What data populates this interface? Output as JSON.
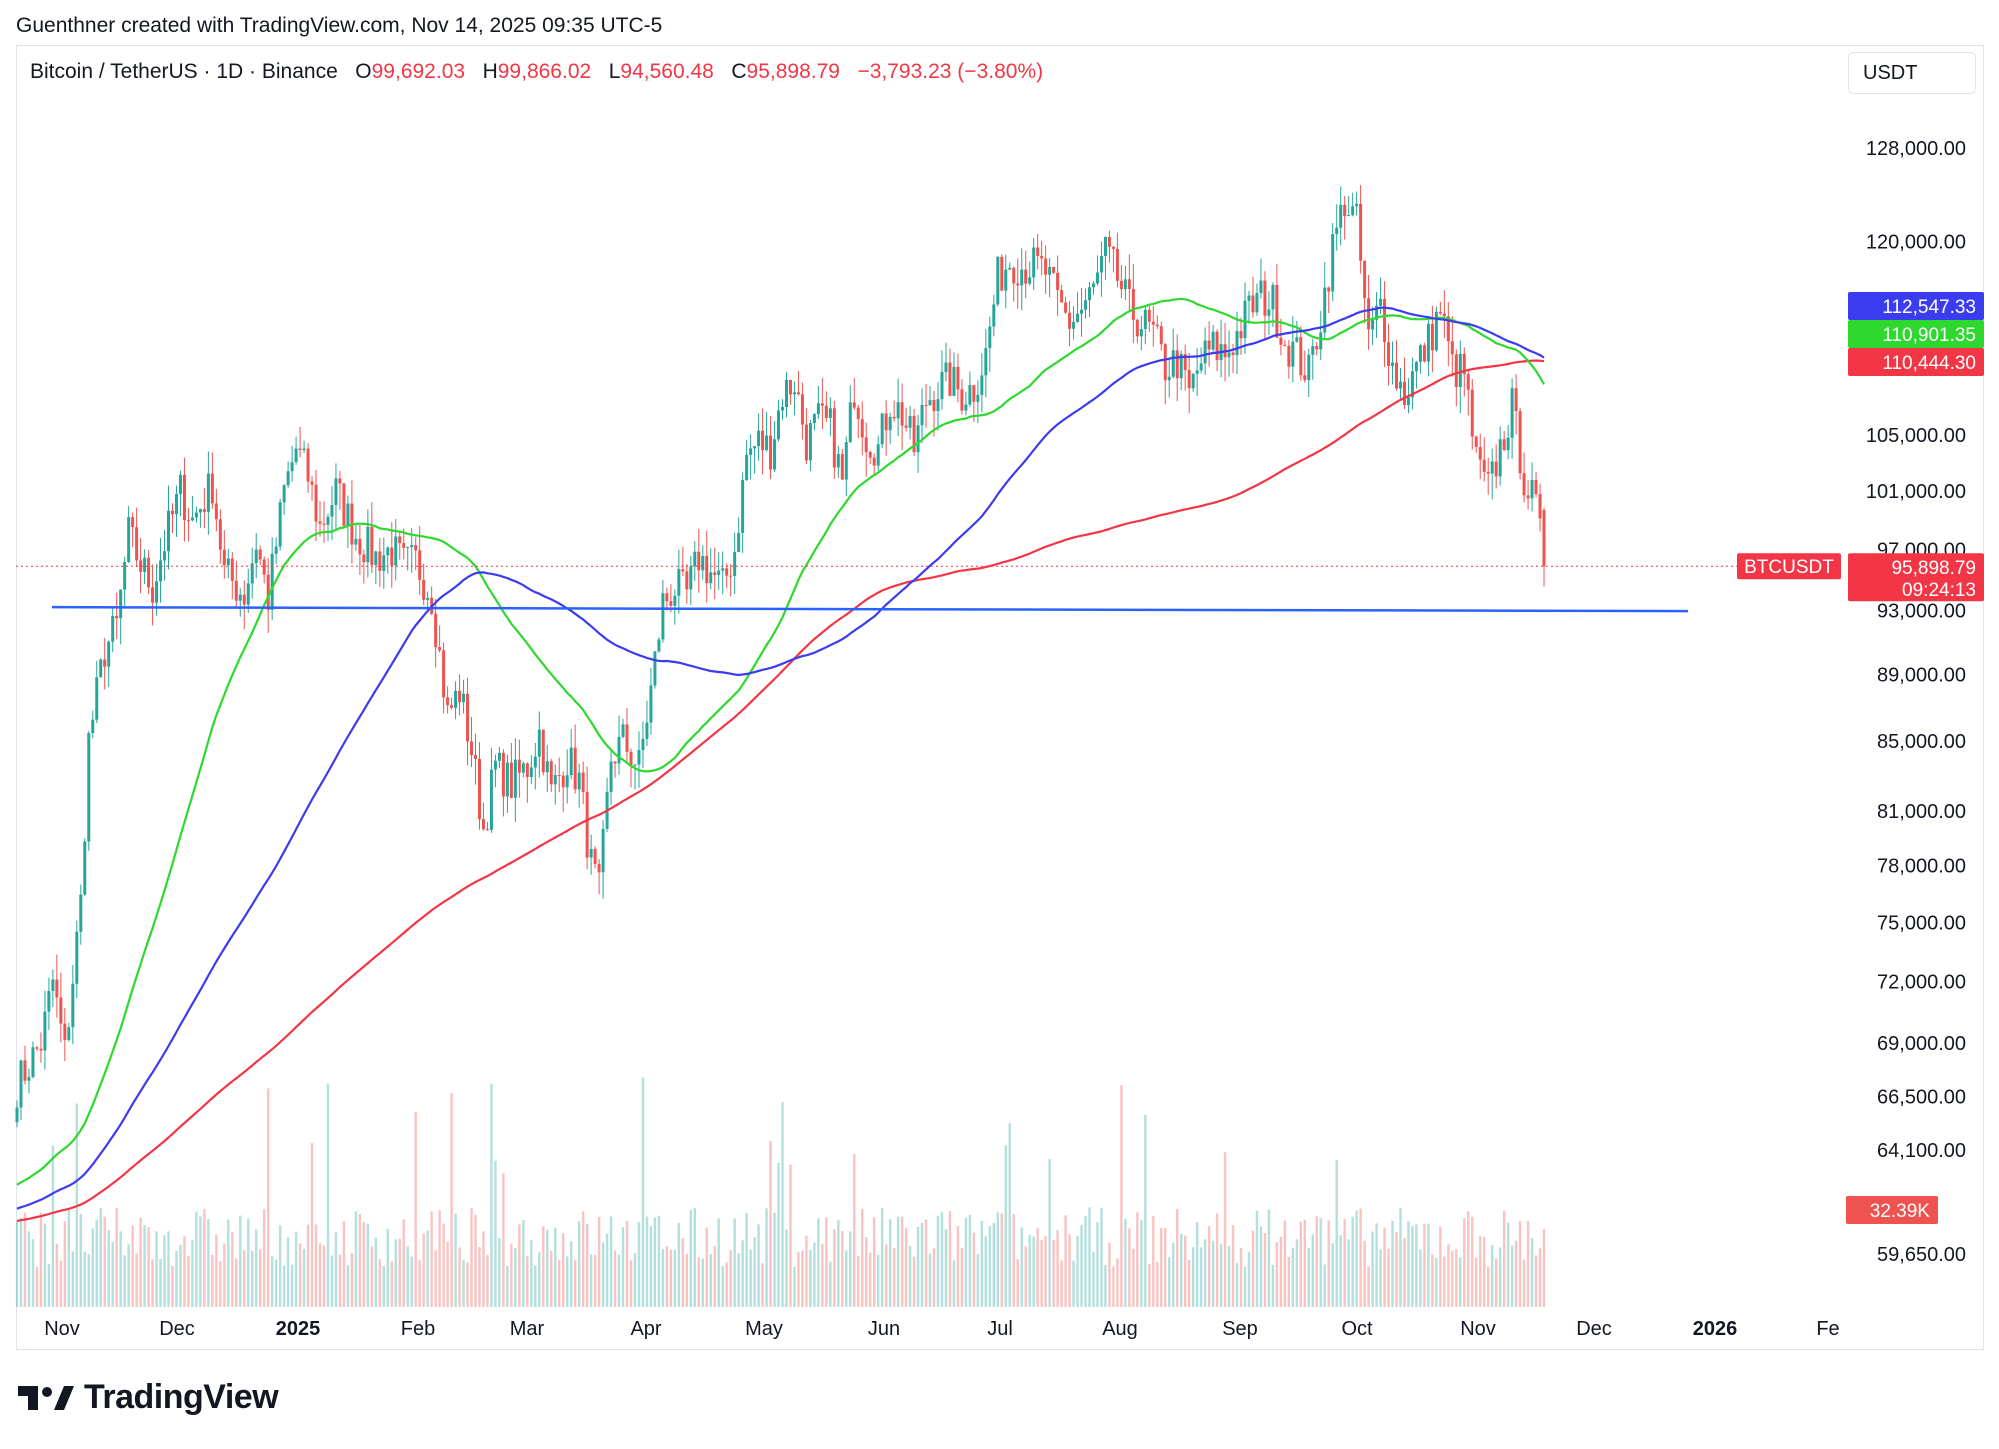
{
  "header": {
    "credit": "Guenthner created with TradingView.com, Nov 14, 2025 09:35 UTC-5"
  },
  "symbol": {
    "name": "Bitcoin / TetherUS · 1D · Binance",
    "open_label": "O",
    "open": "99,692.03",
    "high_label": "H",
    "high": "99,866.02",
    "low_label": "L",
    "low": "94,560.48",
    "close_label": "C",
    "close": "95,898.79",
    "change": "−3,793.23 (−3.80%)"
  },
  "currency": "USDT",
  "brand": {
    "name": "TradingView"
  },
  "colors": {
    "up": "#26a69a",
    "down": "#ef5350",
    "ma_blue": "#3b3bf0",
    "ma_green": "#2ed82e",
    "ma_red": "#f23645",
    "support": "#2962ff",
    "price_label": "#f23645"
  },
  "chart_data": {
    "type": "candlestick",
    "title": "Bitcoin / TetherUS · 1D · Binance",
    "y_scale": "log",
    "ylim": [
      57500,
      137000
    ],
    "y_ticks": [
      "128,000.00",
      "120,000.00",
      "105,000.00",
      "101,000.00",
      "97,000.00",
      "93,000.00",
      "89,000.00",
      "85,000.00",
      "81,000.00",
      "78,000.00",
      "75,000.00",
      "72,000.00",
      "69,000.00",
      "66,500.00",
      "64,100.00",
      "59,650.00"
    ],
    "x_ticks": [
      "Nov",
      "Dec",
      "2025",
      "Feb",
      "Mar",
      "Apr",
      "May",
      "Jun",
      "Jul",
      "Aug",
      "Sep",
      "Oct",
      "Nov",
      "Dec",
      "2026",
      "Fe"
    ],
    "price_path": [
      [
        0,
        67000
      ],
      [
        6,
        69000
      ],
      [
        9,
        72000
      ],
      [
        12,
        68500
      ],
      [
        16,
        76000
      ],
      [
        18,
        85000
      ],
      [
        22,
        90500
      ],
      [
        25,
        92000
      ],
      [
        28,
        98000
      ],
      [
        31,
        96000
      ],
      [
        34,
        94500
      ],
      [
        37,
        97500
      ],
      [
        41,
        101000
      ],
      [
        44,
        99000
      ],
      [
        49,
        101500
      ],
      [
        52,
        95500
      ],
      [
        57,
        94000
      ],
      [
        60,
        97500
      ],
      [
        63,
        93800
      ],
      [
        67,
        101000
      ],
      [
        70,
        104000
      ],
      [
        73,
        102000
      ],
      [
        76,
        98500
      ],
      [
        80,
        101000
      ],
      [
        85,
        98000
      ],
      [
        90,
        96500
      ],
      [
        94,
        97000
      ],
      [
        97,
        96000
      ],
      [
        100,
        96200
      ],
      [
        104,
        94000
      ],
      [
        108,
        86500
      ],
      [
        111,
        88000
      ],
      [
        114,
        84500
      ],
      [
        117,
        80000
      ],
      [
        120,
        83500
      ],
      [
        124,
        82500
      ],
      [
        128,
        83500
      ],
      [
        131,
        85500
      ],
      [
        134,
        82000
      ],
      [
        138,
        84000
      ],
      [
        141,
        82700
      ],
      [
        144,
        78000
      ],
      [
        146,
        76500
      ],
      [
        149,
        84000
      ],
      [
        152,
        85000
      ],
      [
        156,
        83500
      ],
      [
        159,
        88000
      ],
      [
        162,
        93500
      ],
      [
        165,
        94500
      ],
      [
        168,
        94000
      ],
      [
        171,
        96500
      ],
      [
        174,
        95500
      ],
      [
        177,
        94500
      ],
      [
        180,
        97000
      ],
      [
        183,
        103500
      ],
      [
        186,
        104500
      ],
      [
        189,
        104000
      ],
      [
        192,
        108000
      ],
      [
        195,
        109000
      ],
      [
        198,
        104500
      ],
      [
        201,
        106000
      ],
      [
        204,
        105500
      ],
      [
        207,
        101500
      ],
      [
        210,
        108500
      ],
      [
        213,
        105000
      ],
      [
        216,
        104000
      ],
      [
        219,
        107500
      ],
      [
        222,
        106500
      ],
      [
        225,
        104000
      ],
      [
        228,
        107500
      ],
      [
        231,
        108500
      ],
      [
        234,
        109000
      ],
      [
        237,
        108000
      ],
      [
        240,
        108500
      ],
      [
        243,
        111000
      ],
      [
        246,
        117000
      ],
      [
        249,
        118500
      ],
      [
        252,
        118000
      ],
      [
        255,
        118000
      ],
      [
        258,
        117500
      ],
      [
        261,
        115000
      ],
      [
        264,
        113500
      ],
      [
        267,
        114500
      ],
      [
        270,
        116000
      ],
      [
        273,
        119000
      ],
      [
        276,
        117000
      ],
      [
        279,
        114500
      ],
      [
        282,
        113500
      ],
      [
        285,
        112500
      ],
      [
        288,
        110000
      ],
      [
        291,
        110500
      ],
      [
        294,
        108000
      ],
      [
        297,
        110500
      ],
      [
        300,
        111500
      ],
      [
        303,
        111000
      ],
      [
        306,
        112500
      ],
      [
        309,
        114500
      ],
      [
        312,
        115500
      ],
      [
        315,
        115000
      ],
      [
        318,
        112000
      ],
      [
        321,
        111000
      ],
      [
        324,
        109500
      ],
      [
        327,
        114000
      ],
      [
        330,
        119500
      ],
      [
        333,
        123500
      ],
      [
        336,
        121500
      ],
      [
        339,
        112000
      ],
      [
        342,
        115000
      ],
      [
        345,
        110000
      ],
      [
        348,
        108000
      ],
      [
        351,
        110000
      ],
      [
        354,
        112000
      ],
      [
        357,
        114500
      ],
      [
        360,
        110000
      ],
      [
        363,
        109500
      ],
      [
        366,
        103000
      ],
      [
        369,
        101000
      ],
      [
        372,
        104000
      ],
      [
        375,
        107000
      ],
      [
        378,
        102000
      ],
      [
        381,
        99690
      ],
      [
        383,
        95899
      ]
    ],
    "volume_range": [
      0,
      300
    ],
    "volume_last": "32.39K",
    "ma_fast_label": "110,901.35",
    "ma_mid_label": "112,547.33",
    "ma_slow_label": "110,444.30",
    "ma_fast_value": 110901.35,
    "ma_mid_value": 112547.33,
    "ma_slow_value": 110444.3,
    "last_price": 95898.79,
    "last_price_label": "95,898.79",
    "countdown": "09:24:13",
    "ticker_label": "BTCUSDT",
    "support_level": 93100
  }
}
